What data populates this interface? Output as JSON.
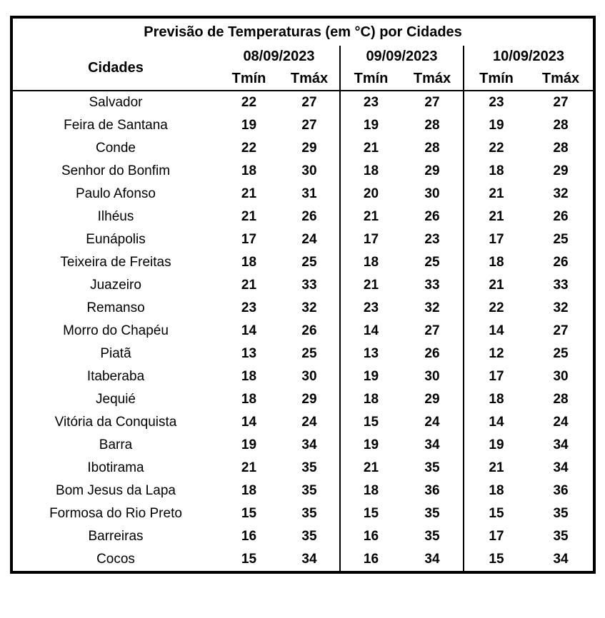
{
  "title": "Previsão de Temperaturas (em °C) por Cidades",
  "colors": {
    "background": "#ffffff",
    "border": "#000000",
    "text": "#000000"
  },
  "table": {
    "city_header": "Cidades",
    "dates": [
      "08/09/2023",
      "09/09/2023",
      "10/09/2023"
    ],
    "tmin_label": "Tmín",
    "tmax_label": "Tmáx"
  },
  "chart_data": {
    "type": "table",
    "title": "Previsão de Temperaturas (em °C) por Cidades",
    "columns": [
      "Cidades",
      "08/09/2023 Tmín",
      "08/09/2023 Tmáx",
      "09/09/2023 Tmín",
      "09/09/2023 Tmáx",
      "10/09/2023 Tmín",
      "10/09/2023 Tmáx"
    ],
    "rows": [
      [
        "Salvador",
        22,
        27,
        23,
        27,
        23,
        27
      ],
      [
        "Feira de Santana",
        19,
        27,
        19,
        28,
        19,
        28
      ],
      [
        "Conde",
        22,
        29,
        21,
        28,
        22,
        28
      ],
      [
        "Senhor do Bonfim",
        18,
        30,
        18,
        29,
        18,
        29
      ],
      [
        "Paulo Afonso",
        21,
        31,
        20,
        30,
        21,
        32
      ],
      [
        "Ilhéus",
        21,
        26,
        21,
        26,
        21,
        26
      ],
      [
        "Eunápolis",
        17,
        24,
        17,
        23,
        17,
        25
      ],
      [
        "Teixeira de Freitas",
        18,
        25,
        18,
        25,
        18,
        26
      ],
      [
        "Juazeiro",
        21,
        33,
        21,
        33,
        21,
        33
      ],
      [
        "Remanso",
        23,
        32,
        23,
        32,
        22,
        32
      ],
      [
        "Morro do Chapéu",
        14,
        26,
        14,
        27,
        14,
        27
      ],
      [
        "Piatã",
        13,
        25,
        13,
        26,
        12,
        25
      ],
      [
        "Itaberaba",
        18,
        30,
        19,
        30,
        17,
        30
      ],
      [
        "Jequié",
        18,
        29,
        18,
        29,
        18,
        28
      ],
      [
        "Vitória da Conquista",
        14,
        24,
        15,
        24,
        14,
        24
      ],
      [
        "Barra",
        19,
        34,
        19,
        34,
        19,
        34
      ],
      [
        "Ibotirama",
        21,
        35,
        21,
        35,
        21,
        34
      ],
      [
        "Bom Jesus da Lapa",
        18,
        35,
        18,
        36,
        18,
        36
      ],
      [
        "Formosa do Rio Preto",
        15,
        35,
        15,
        35,
        15,
        35
      ],
      [
        "Barreiras",
        16,
        35,
        16,
        35,
        17,
        35
      ],
      [
        "Cocos",
        15,
        34,
        16,
        34,
        15,
        34
      ]
    ]
  }
}
